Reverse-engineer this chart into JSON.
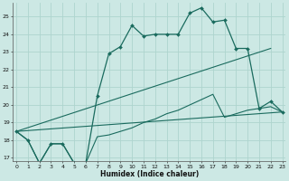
{
  "xlabel": "Humidex (Indice chaleur)",
  "background_color": "#cce8e4",
  "grid_color": "#aed4ce",
  "line_color": "#1a6b5e",
  "y_main": [
    18.5,
    18.0,
    16.7,
    17.8,
    17.8,
    16.7,
    16.7,
    20.5,
    22.9,
    23.3,
    24.5,
    23.9,
    24.0,
    24.0,
    24.0,
    25.2,
    25.5,
    24.7,
    24.8,
    23.2,
    23.2,
    19.8,
    20.2,
    19.6
  ],
  "y_line2": [
    18.5,
    18.0,
    16.7,
    17.8,
    17.8,
    16.7,
    16.7,
    18.2,
    18.3,
    18.5,
    18.7,
    19.0,
    19.2,
    19.5,
    19.7,
    20.0,
    20.3,
    20.6,
    19.3,
    19.5,
    19.7,
    19.8,
    19.9,
    19.6
  ],
  "x_straight1_start": 0,
  "x_straight1_end": 22,
  "y_straight1_start": 18.5,
  "y_straight1_end": 23.2,
  "x_straight2_start": 0,
  "x_straight2_end": 23,
  "y_straight2_start": 18.5,
  "y_straight2_end": 19.6,
  "ylim": [
    16.8,
    25.8
  ],
  "xlim": [
    -0.3,
    23.3
  ],
  "yticks": [
    17,
    18,
    19,
    20,
    21,
    22,
    23,
    24,
    25
  ],
  "xticks": [
    0,
    1,
    2,
    3,
    4,
    5,
    6,
    7,
    8,
    9,
    10,
    11,
    12,
    13,
    14,
    15,
    16,
    17,
    18,
    19,
    20,
    21,
    22,
    23
  ]
}
